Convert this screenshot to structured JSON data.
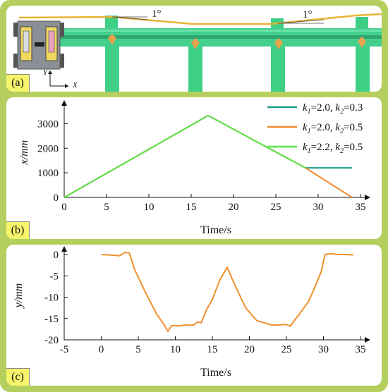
{
  "colors": {
    "frame": "#b5cf5f",
    "rail": "#3fcf86",
    "post": "#3fcf86",
    "spacer": "#e8a24a",
    "cable": "#e8b534",
    "series_k1_2.0_k2_0.3": "#1a9e8a",
    "series_k1_2.0_k2_0.5": "#f08a2c",
    "series_k1_2.2_k2_0.5": "#5ce64a",
    "c_line": "#f0902c",
    "label_bg": "#f6f46a"
  },
  "panels": {
    "a": {
      "label": "(a)",
      "angle_left": "1°",
      "angle_right": "1°",
      "axis_y": "Y",
      "axis_x": "X"
    },
    "b": {
      "label": "(b)"
    },
    "c": {
      "label": "(c)"
    }
  },
  "chart_data": [
    {
      "type": "line",
      "xlabel": "Time/s",
      "ylabel": "x/mm",
      "xlim": [
        0,
        35
      ],
      "ylim": [
        0,
        3500
      ],
      "xticks": [
        0,
        5,
        10,
        15,
        20,
        25,
        30,
        35
      ],
      "yticks": [
        0,
        1000,
        2000,
        3000
      ],
      "legend_position": "top-right",
      "series": [
        {
          "name": "k1=2.0, k2=0.3",
          "legend": {
            "k1": "2.0",
            "k2": "0.3"
          },
          "color": "#1a9e8a",
          "x": [
            0,
            17,
            28.5,
            34
          ],
          "y": [
            0,
            3330,
            1200,
            1200
          ]
        },
        {
          "name": "k1=2.0, k2=0.5",
          "legend": {
            "k1": "2.0",
            "k2": "0.5"
          },
          "color": "#f08a2c",
          "x": [
            0,
            17,
            28.5,
            34
          ],
          "y": [
            0,
            3330,
            1200,
            0
          ]
        },
        {
          "name": "k1=2.2, k2=0.5",
          "legend": {
            "k1": "2.2",
            "k2": "0.5"
          },
          "color": "#5ce64a",
          "x": [
            0,
            17,
            28.5
          ],
          "y": [
            0,
            3330,
            1200
          ]
        }
      ]
    },
    {
      "type": "line",
      "xlabel": "Time/s",
      "ylabel": "y/mm",
      "xlim": [
        -5,
        35
      ],
      "ylim": [
        -20,
        0
      ],
      "xticks": [
        -5,
        0,
        5,
        10,
        15,
        20,
        25,
        30,
        35
      ],
      "yticks": [
        0,
        -5,
        -10,
        -15,
        -20
      ],
      "series": [
        {
          "color": "#f0902c",
          "x": [
            0,
            2,
            2.5,
            3.2,
            3.8,
            4.5,
            6,
            7.5,
            8.5,
            9,
            9.5,
            10.5,
            11.5,
            12,
            12.5,
            13,
            13.5,
            14.2,
            15,
            16,
            17,
            18,
            19.5,
            21,
            22,
            23,
            24,
            25,
            25.5,
            26.5,
            28,
            29,
            29.7,
            30.2,
            31,
            32,
            33,
            34
          ],
          "y": [
            0,
            -0.2,
            -0.3,
            0.5,
            0.4,
            -3.5,
            -9,
            -14,
            -16.5,
            -18,
            -16.7,
            -16.7,
            -16.5,
            -16.6,
            -16.5,
            -15.8,
            -16,
            -13,
            -10.5,
            -6,
            -3,
            -7,
            -12.5,
            -15.5,
            -16,
            -16.5,
            -16.5,
            -16.4,
            -16.8,
            -14.5,
            -11,
            -7,
            -4,
            0,
            0.2,
            0,
            0,
            -0.1
          ]
        }
      ]
    }
  ]
}
